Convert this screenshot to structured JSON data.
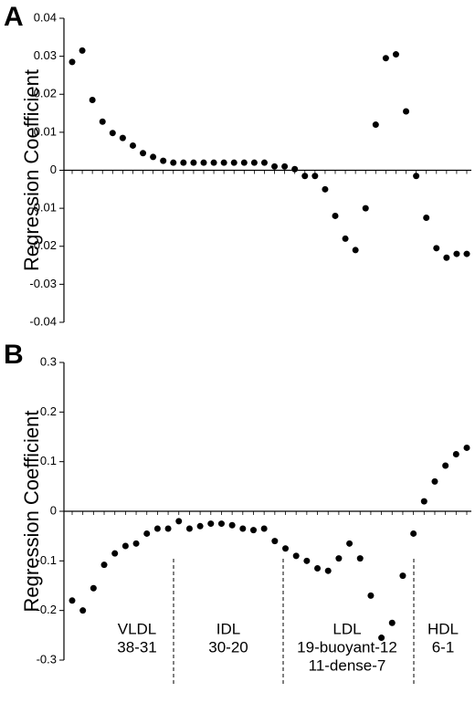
{
  "chart_data": [
    {
      "type": "scatter",
      "panel_label": "A",
      "ylabel": "Regression Coefficient",
      "color": "#000000",
      "values": [
        0.0285,
        0.0315,
        0.0185,
        0.0128,
        0.0098,
        0.0085,
        0.0065,
        0.0045,
        0.0035,
        0.0025,
        0.002,
        0.002,
        0.002,
        0.002,
        0.002,
        0.002,
        0.002,
        0.002,
        0.002,
        0.002,
        0.001,
        0.001,
        0.0003,
        -0.0015,
        -0.0015,
        -0.005,
        -0.012,
        -0.018,
        -0.021,
        -0.01,
        0.012,
        0.0295,
        0.0305,
        0.0155,
        -0.0015,
        -0.0125,
        -0.0205,
        -0.023,
        -0.022,
        -0.022
      ],
      "ylim": [
        -0.04,
        0.04
      ],
      "yticks": [
        0.04,
        0.03,
        0.02,
        0.01,
        0,
        -0.01,
        -0.02,
        -0.03,
        -0.04
      ]
    },
    {
      "type": "scatter",
      "panel_label": "B",
      "ylabel": "Regression Coefficient",
      "color": "#000000",
      "values": [
        -0.18,
        -0.2,
        -0.155,
        -0.108,
        -0.085,
        -0.07,
        -0.065,
        -0.045,
        -0.035,
        -0.035,
        -0.02,
        -0.035,
        -0.03,
        -0.025,
        -0.025,
        -0.028,
        -0.035,
        -0.038,
        -0.035,
        -0.06,
        -0.075,
        -0.09,
        -0.1,
        -0.115,
        -0.12,
        -0.095,
        -0.065,
        -0.095,
        -0.17,
        -0.255,
        -0.225,
        -0.13,
        -0.045,
        0.02,
        0.06,
        0.092,
        0.115,
        0.128
      ],
      "ylim": [
        -0.3,
        0.3
      ],
      "yticks": [
        0.3,
        0.2,
        0.1,
        0,
        -0.1,
        -0.2,
        -0.3
      ],
      "groups": [
        {
          "lines": [
            "VLDL",
            "38-31"
          ]
        },
        {
          "lines": [
            "IDL",
            "30-20"
          ]
        },
        {
          "lines": [
            "LDL",
            "19-buoyant-12",
            "11-dense-7"
          ]
        },
        {
          "lines": [
            "HDL",
            "6-1"
          ]
        }
      ]
    }
  ]
}
